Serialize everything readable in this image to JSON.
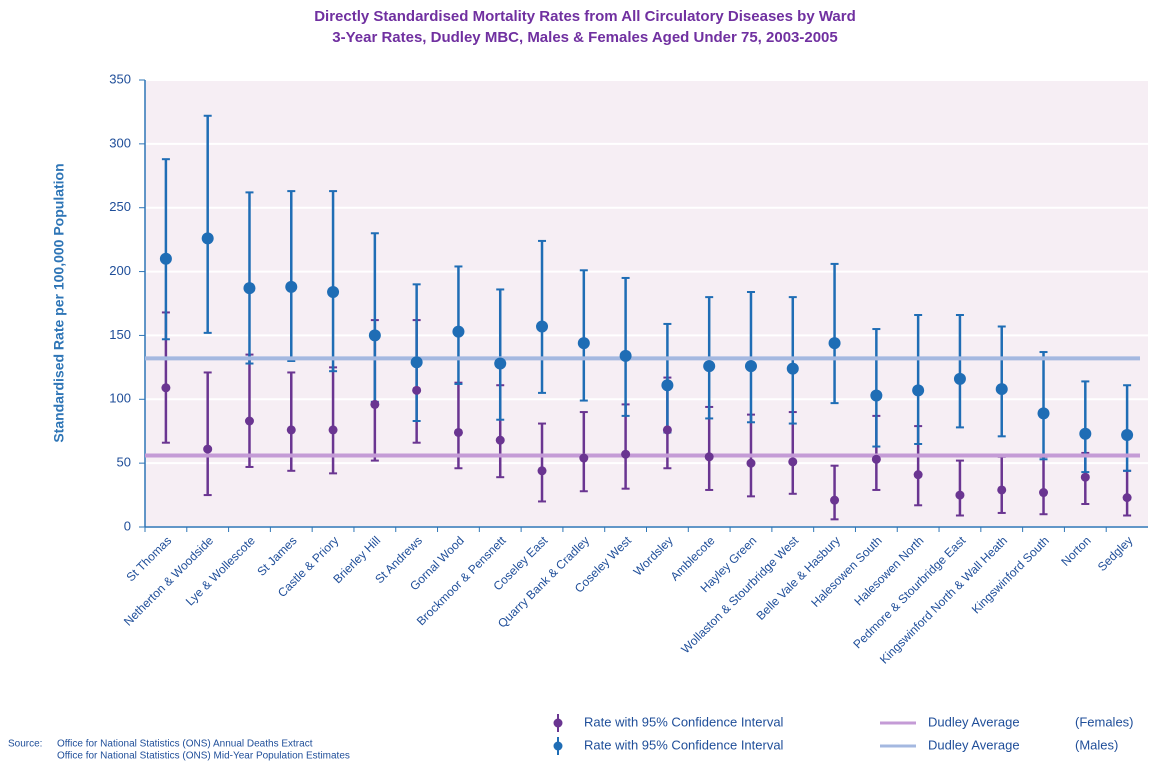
{
  "chart_data": {
    "type": "errorbar",
    "title": "Directly Standardised Mortality Rates from All Circulatory Diseases by Ward",
    "subtitle": "3-Year Rates, Dudley MBC, Males & Females Aged Under 75, 2003-2005",
    "y_label": "Standardised Rate per 100,000 Population",
    "ylim": [
      0,
      350
    ],
    "yticks": [
      0,
      50,
      100,
      150,
      200,
      250,
      300,
      350
    ],
    "grid": true,
    "plot_background": "#f6eef4",
    "categories": [
      "St Thomas",
      "Netherton & Woodside",
      "Lye & Wollescote",
      "St James",
      "Castle & Priory",
      "Brierley Hill",
      "St Andrews",
      "Gornal Wood",
      "Brockmoor & Pensnett",
      "Coseley East",
      "Quarry Bank & Cradley",
      "Coseley West",
      "Wordsley",
      "Amblecote",
      "Hayley Green",
      "Wollaston & Stourbridge West",
      "Belle Vale & Hasbury",
      "Halesowen South",
      "Halesowen North",
      "Pedmore & Stourbridge East",
      "Kingswinford North & Wall Heath",
      "Kingswinford South",
      "Norton",
      "Sedgley"
    ],
    "series": [
      {
        "name": "Rate with 95% Confidence Interval",
        "group": "(Females)",
        "average_name": "Dudley Average",
        "average": 56,
        "color": "#6a3591",
        "average_color": "#c49bd6",
        "values": [
          109,
          61,
          83,
          76,
          76,
          96,
          107,
          74,
          68,
          44,
          54,
          57,
          76,
          55,
          50,
          51,
          21,
          53,
          41,
          25,
          29,
          27,
          39,
          23
        ],
        "lower": [
          66,
          25,
          47,
          44,
          42,
          52,
          66,
          46,
          39,
          20,
          28,
          30,
          46,
          29,
          24,
          26,
          6,
          29,
          17,
          9,
          11,
          10,
          18,
          9
        ],
        "upper": [
          168,
          121,
          135,
          121,
          125,
          162,
          162,
          113,
          111,
          81,
          90,
          96,
          117,
          94,
          88,
          90,
          48,
          87,
          79,
          52,
          55,
          55,
          58,
          44
        ]
      },
      {
        "name": "Rate with 95% Confidence Interval",
        "group": "(Males)",
        "average_name": "Dudley Average",
        "average": 132,
        "color": "#1f6db5",
        "average_color": "#a4b8e0",
        "values": [
          210,
          226,
          187,
          188,
          184,
          150,
          129,
          153,
          128,
          157,
          144,
          134,
          111,
          126,
          126,
          124,
          144,
          103,
          107,
          116,
          108,
          89,
          73,
          72
        ],
        "lower": [
          147,
          152,
          128,
          130,
          122,
          98,
          83,
          112,
          84,
          105,
          99,
          87,
          74,
          85,
          82,
          81,
          97,
          63,
          65,
          78,
          71,
          53,
          43,
          44
        ],
        "upper": [
          288,
          322,
          262,
          263,
          263,
          230,
          190,
          204,
          186,
          224,
          201,
          195,
          159,
          180,
          184,
          180,
          206,
          155,
          166,
          166,
          157,
          137,
          114,
          111
        ]
      }
    ],
    "source_label": "Source:",
    "source_lines": [
      "Office for National Statistics (ONS) Annual Deaths Extract",
      "Office for National Statistics (ONS) Mid-Year Population Estimates"
    ]
  }
}
